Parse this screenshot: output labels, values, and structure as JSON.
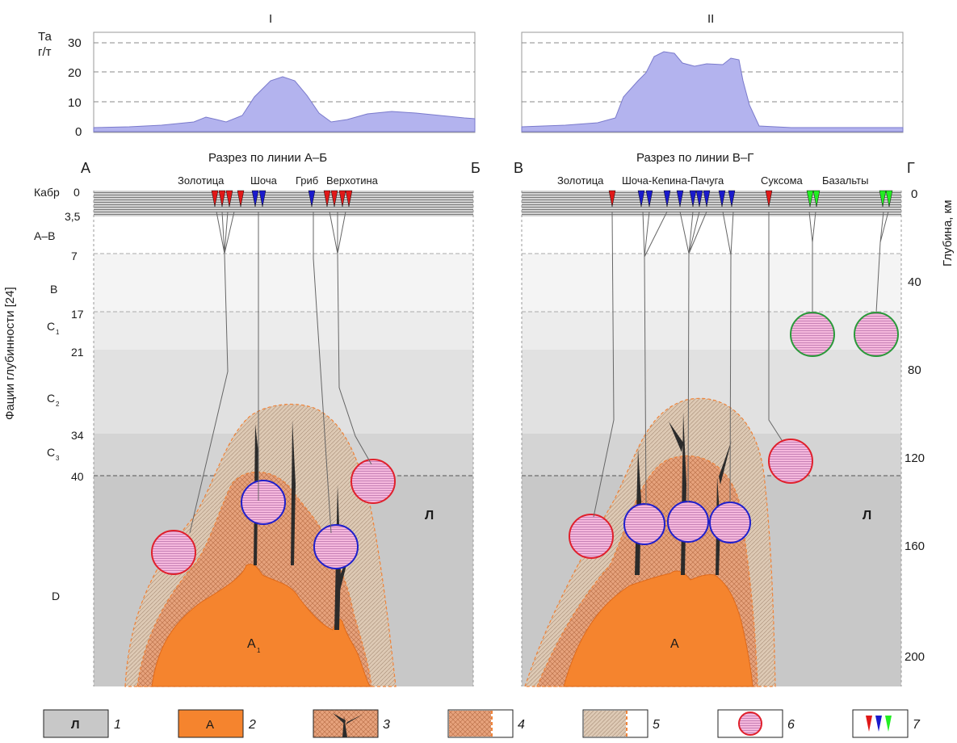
{
  "panels": {
    "left": {
      "roman": "I",
      "section_title": "Разрез по линии А–Б",
      "corner_left": "А",
      "corner_right": "Б",
      "wells": [
        "Золотица",
        "Шоча",
        "Гриб",
        "Верхотина"
      ],
      "facies_label": "Л",
      "root_label": "А",
      "root_sub": "1"
    },
    "right": {
      "roman": "II",
      "section_title": "Разрез по линии В–Г",
      "corner_left": "В",
      "corner_right": "Г",
      "wells": [
        "Золотица",
        "Шоча-Кепина-Пачуга",
        "Суксома",
        "Базальты"
      ],
      "facies_label": "Л",
      "root_label": "А"
    }
  },
  "ta_chart": {
    "ylabel_line1": "Та",
    "ylabel_line2": "г/т",
    "ticks": [
      "30",
      "20",
      "10",
      "0"
    ]
  },
  "depth_axis": {
    "label": "Глубина, км",
    "ticks": [
      "0",
      "40",
      "80",
      "120",
      "160",
      "200"
    ]
  },
  "facies_axis": {
    "label": "Фации глубинности [24]",
    "kabr": "Кабр",
    "boundaries": [
      "0",
      "3,5",
      "7",
      "17",
      "21",
      "34",
      "40"
    ],
    "zones": [
      "А–В",
      "В",
      "С",
      "С",
      "С",
      "D"
    ],
    "zone_subs": [
      "1",
      "2",
      "3"
    ]
  },
  "legend": [
    {
      "num": "1",
      "label": "Л"
    },
    {
      "num": "2",
      "label": "А"
    },
    {
      "num": "3"
    },
    {
      "num": "4"
    },
    {
      "num": "5"
    },
    {
      "num": "6"
    },
    {
      "num": "7"
    }
  ],
  "colors": {
    "mantle": "#c8c8c8",
    "asthenolith": "#f5842e",
    "chart_fill": "#b3b3ee",
    "red_circle": "#e0202c",
    "blue_circle": "#1f1fcc",
    "green_circle": "#2a9a3a",
    "kimberlite_red": "#e01818",
    "kimberlite_blue": "#1a1acc",
    "kimberlite_green": "#22ee22"
  }
}
